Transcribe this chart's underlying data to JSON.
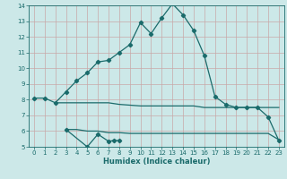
{
  "xlabel": "Humidex (Indice chaleur)",
  "xlim": [
    -0.5,
    23.5
  ],
  "ylim": [
    5,
    14
  ],
  "xticks": [
    0,
    1,
    2,
    3,
    4,
    5,
    6,
    7,
    8,
    9,
    10,
    11,
    12,
    13,
    14,
    15,
    16,
    17,
    18,
    19,
    20,
    21,
    22,
    23
  ],
  "yticks": [
    5,
    6,
    7,
    8,
    9,
    10,
    11,
    12,
    13,
    14
  ],
  "bg_color": "#cce8e8",
  "line_color": "#1a6b6b",
  "grid_color": "#c8a8a8",
  "line1_x": [
    0,
    1,
    2,
    3,
    4,
    5,
    6,
    7,
    8,
    9,
    10,
    11,
    12,
    13,
    14,
    15,
    16,
    17,
    18,
    19,
    20,
    21,
    22,
    23
  ],
  "line1_y": [
    8.1,
    8.1,
    7.8,
    8.5,
    9.2,
    9.7,
    10.4,
    10.5,
    11.0,
    11.5,
    12.9,
    12.2,
    13.2,
    14.1,
    13.4,
    12.4,
    10.8,
    8.2,
    7.7,
    7.5,
    7.5,
    7.5,
    6.9,
    5.4
  ],
  "line2_x": [
    2,
    3,
    4,
    5,
    6,
    7,
    8,
    9,
    10,
    11,
    12,
    13,
    14,
    15,
    16,
    17,
    18,
    19,
    20,
    21,
    22,
    23
  ],
  "line2_y": [
    7.8,
    7.8,
    7.8,
    7.8,
    7.8,
    7.8,
    7.7,
    7.65,
    7.6,
    7.6,
    7.6,
    7.6,
    7.6,
    7.6,
    7.5,
    7.5,
    7.5,
    7.5,
    7.5,
    7.5,
    7.5,
    7.5
  ],
  "line3_x": [
    3,
    5,
    6,
    7,
    7.5,
    8
  ],
  "line3_y": [
    6.1,
    5.0,
    5.8,
    5.35,
    5.4,
    5.4
  ],
  "line4_x": [
    3,
    4,
    5,
    6,
    7,
    8,
    9,
    10,
    11,
    12,
    13,
    14,
    15,
    16,
    17,
    18,
    19,
    20,
    21,
    22,
    23
  ],
  "line4_y": [
    6.1,
    6.1,
    6.0,
    6.0,
    5.9,
    5.9,
    5.85,
    5.85,
    5.85,
    5.85,
    5.85,
    5.85,
    5.85,
    5.85,
    5.85,
    5.85,
    5.85,
    5.85,
    5.85,
    5.85,
    5.45
  ]
}
